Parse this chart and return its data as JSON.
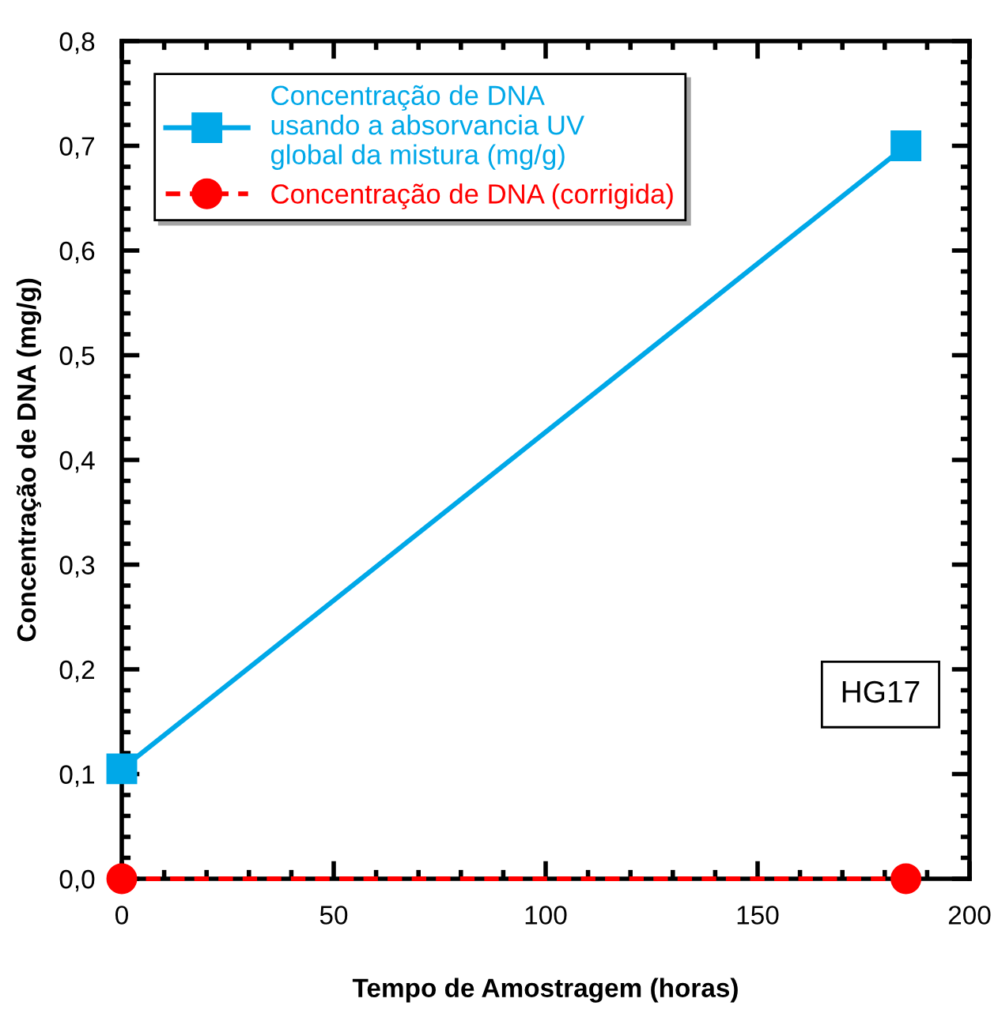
{
  "chart_data": {
    "type": "line",
    "xlabel": "Tempo de Amostragem (horas)",
    "ylabel": "Concentração de DNA (mg/g)",
    "x": [
      0,
      185
    ],
    "series": [
      {
        "name": "Concentração de DNA\nusando a absorvancia UV\nglobal da mistura (mg/g)",
        "color": "#00a8e8",
        "values": [
          0.105,
          0.7
        ],
        "marker": "square",
        "line_style": "solid"
      },
      {
        "name": "Concentração de DNA (corrigida)",
        "color": "#ff0000",
        "values": [
          0.0,
          0.0
        ],
        "marker": "circle",
        "line_style": "dashed"
      }
    ],
    "xlim": [
      0,
      200
    ],
    "xticks": [
      0,
      50,
      100,
      150,
      200
    ],
    "ylim": [
      0,
      0.8
    ],
    "yticks": [
      {
        "value": 0,
        "label": "0,0"
      },
      {
        "value": 0.1,
        "label": "0,1"
      },
      {
        "value": 0.2,
        "label": "0,2"
      },
      {
        "value": 0.3,
        "label": "0,3"
      },
      {
        "value": 0.4,
        "label": "0,4"
      },
      {
        "value": 0.5,
        "label": "0,5"
      },
      {
        "value": 0.6,
        "label": "0,6"
      },
      {
        "value": 0.7,
        "label": "0,7"
      },
      {
        "value": 0.8,
        "label": "0,8"
      }
    ],
    "annotations": [
      "HG17"
    ],
    "legend": "top left",
    "grid": false
  }
}
